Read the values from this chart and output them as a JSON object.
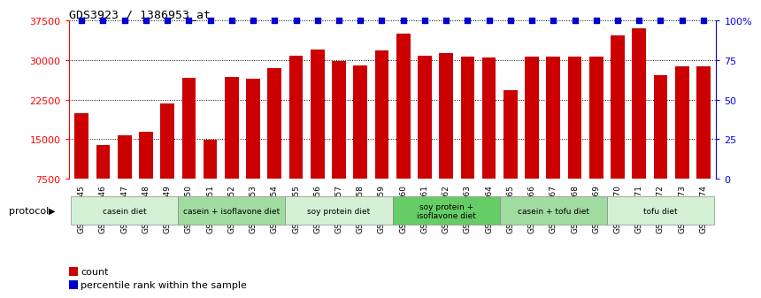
{
  "title": "GDS3923 / 1386953_at",
  "samples": [
    "GSM586045",
    "GSM586046",
    "GSM586047",
    "GSM586048",
    "GSM586049",
    "GSM586050",
    "GSM586051",
    "GSM586052",
    "GSM586053",
    "GSM586054",
    "GSM586055",
    "GSM586056",
    "GSM586057",
    "GSM586058",
    "GSM586059",
    "GSM586060",
    "GSM586061",
    "GSM586062",
    "GSM586063",
    "GSM586064",
    "GSM586065",
    "GSM586066",
    "GSM586067",
    "GSM586068",
    "GSM586069",
    "GSM586070",
    "GSM586071",
    "GSM586072",
    "GSM586073",
    "GSM586074"
  ],
  "bar_heights": [
    20000,
    13800,
    15800,
    16400,
    21700,
    26700,
    14800,
    26800,
    26500,
    28500,
    30800,
    32000,
    29800,
    28900,
    31800,
    35000,
    30900,
    31300,
    30600,
    30500,
    24300,
    30600,
    30600,
    30700,
    30600,
    34700,
    36100,
    27200,
    28800,
    28800
  ],
  "bar_color": "#cc0000",
  "dot_color": "#0000cc",
  "ylim_left": [
    7500,
    37500
  ],
  "ylim_right": [
    0,
    100
  ],
  "yticks_left": [
    7500,
    15000,
    22500,
    30000,
    37500
  ],
  "yticks_right": [
    0,
    25,
    50,
    75,
    100
  ],
  "ytick_right_labels": [
    "0",
    "25",
    "50",
    "75",
    "100%"
  ],
  "protocols": [
    {
      "label": "casein diet",
      "start": 0,
      "end": 5,
      "color": "#d4f0d4"
    },
    {
      "label": "casein + isoflavone diet",
      "start": 5,
      "end": 10,
      "color": "#a0dba0"
    },
    {
      "label": "soy protein diet",
      "start": 10,
      "end": 15,
      "color": "#d4f0d4"
    },
    {
      "label": "soy protein +\nisoflavone diet",
      "start": 15,
      "end": 20,
      "color": "#66cc66"
    },
    {
      "label": "casein + tofu diet",
      "start": 20,
      "end": 25,
      "color": "#a0dba0"
    },
    {
      "label": "tofu diet",
      "start": 25,
      "end": 30,
      "color": "#d4f0d4"
    }
  ],
  "legend_count_label": "count",
  "legend_pct_label": "percentile rank within the sample",
  "protocol_label": "protocol"
}
